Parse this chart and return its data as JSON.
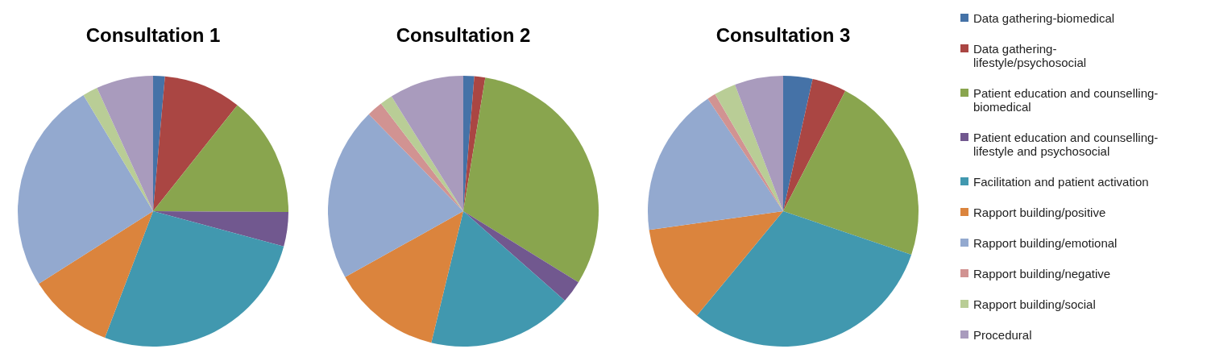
{
  "chart_data": [
    {
      "type": "pie",
      "title": "Consultation 1",
      "categories": [
        "Data gathering-biomedical",
        "Data gathering-lifestyle/psychosocial",
        "Patient education and counselling-biomedical",
        "Patient education and counselling-lifestyle and psychosocial",
        "Facilitation and patient activation",
        "Rapport building/positive",
        "Rapport building/emotional",
        "Rapport building/negative",
        "Rapport building/social",
        "Procedural"
      ],
      "values": [
        1.4,
        9.3,
        14.4,
        4.1,
        26.6,
        10.2,
        25.4,
        0,
        1.8,
        6.8
      ],
      "colors": [
        "#4572a7",
        "#aa4643",
        "#89a54e",
        "#71588f",
        "#4198af",
        "#db843d",
        "#93a9cf",
        "#d19392",
        "#b9cd96",
        "#a99bbd"
      ],
      "legend": "right"
    },
    {
      "type": "pie",
      "title": "Consultation 2",
      "categories": [
        null,
        null,
        null,
        null,
        null,
        null,
        null,
        null,
        null,
        null
      ],
      "values": [
        1.3,
        1.3,
        31.2,
        2.7,
        17.3,
        13.1,
        20.8,
        1.9,
        1.5,
        8.9
      ],
      "colors": [
        "#4572a7",
        "#aa4643",
        "#89a54e",
        "#71588f",
        "#4198af",
        "#db843d",
        "#93a9cf",
        "#d19392",
        "#b9cd96",
        "#a99bbd"
      ]
    },
    {
      "type": "pie",
      "title": "Consultation 3",
      "categories": [
        null,
        null,
        null,
        null,
        null,
        null,
        null,
        null,
        null,
        null
      ],
      "values": [
        3.5,
        4.1,
        22.6,
        0,
        30.8,
        11.8,
        17.8,
        1.0,
        2.6,
        5.8
      ],
      "colors": [
        "#4572a7",
        "#aa4643",
        "#89a54e",
        "#71588f",
        "#4198af",
        "#db843d",
        "#93a9cf",
        "#d19392",
        "#b9cd96",
        "#a99bbd"
      ]
    }
  ]
}
